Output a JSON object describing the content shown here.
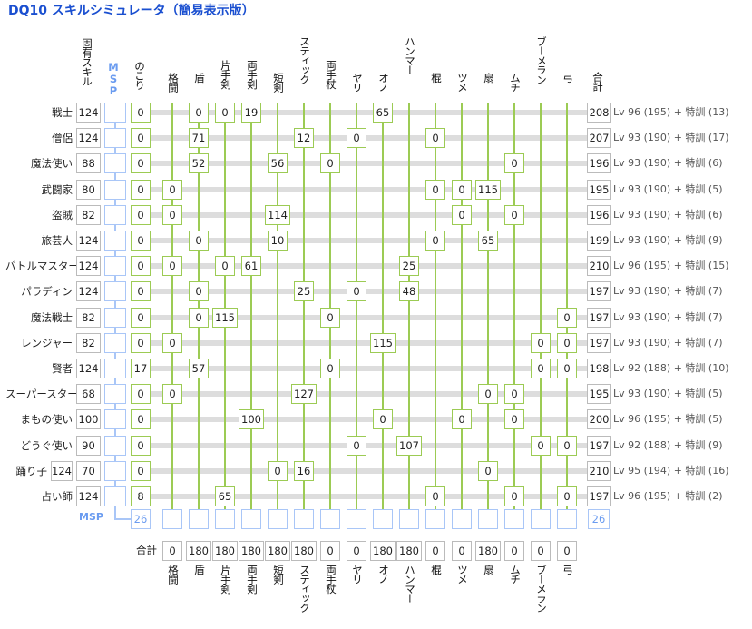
{
  "title": "DQ10 スキルシミュレータ（簡易表示版）",
  "header": {
    "unique_skill": "固有スキル",
    "msp": "MSP",
    "remaining": "のこり",
    "total": "合計"
  },
  "weapons": [
    "格闘",
    "盾",
    "片手剣",
    "両手剣",
    "短剣",
    "スティック",
    "両手杖",
    "ヤリ",
    "オノ",
    "ハンマー",
    "棍",
    "ツメ",
    "扇",
    "ムチ",
    "ブーメラン",
    "弓"
  ],
  "rows": [
    {
      "job": "戦士",
      "unique": "124",
      "remain": "0",
      "skills": [
        "",
        "0",
        "0",
        "19",
        "",
        "",
        "",
        "",
        "65",
        "",
        "",
        "",
        "",
        "",
        "",
        ""
      ],
      "total": "208",
      "lv": "Lv 96 (195) + 特訓 (13)"
    },
    {
      "job": "僧侶",
      "unique": "124",
      "remain": "0",
      "skills": [
        "",
        "71",
        "",
        "",
        "",
        "12",
        "",
        "0",
        "",
        "",
        "0",
        "",
        "",
        "",
        "",
        ""
      ],
      "total": "207",
      "lv": "Lv 93 (190) + 特訓 (17)"
    },
    {
      "job": "魔法使い",
      "unique": "88",
      "remain": "0",
      "skills": [
        "",
        "52",
        "",
        "",
        "56",
        "",
        "0",
        "",
        "",
        "",
        "",
        "",
        "",
        "0",
        "",
        ""
      ],
      "total": "196",
      "lv": "Lv 93 (190) + 特訓 (6)"
    },
    {
      "job": "武闘家",
      "unique": "80",
      "remain": "0",
      "skills": [
        "0",
        "",
        "",
        "",
        "",
        "",
        "",
        "",
        "",
        "",
        "0",
        "0",
        "115",
        "",
        "",
        ""
      ],
      "total": "195",
      "lv": "Lv 93 (190) + 特訓 (5)"
    },
    {
      "job": "盗賊",
      "unique": "82",
      "remain": "0",
      "skills": [
        "0",
        "",
        "",
        "",
        "114",
        "",
        "",
        "",
        "",
        "",
        "",
        "0",
        "",
        "0",
        "",
        ""
      ],
      "total": "196",
      "lv": "Lv 93 (190) + 特訓 (6)"
    },
    {
      "job": "旅芸人",
      "unique": "124",
      "remain": "0",
      "skills": [
        "",
        "0",
        "",
        "",
        "10",
        "",
        "",
        "",
        "",
        "",
        "0",
        "",
        "65",
        "",
        "",
        ""
      ],
      "total": "199",
      "lv": "Lv 93 (190) + 特訓 (9)"
    },
    {
      "job": "バトルマスター",
      "unique": "124",
      "remain": "0",
      "skills": [
        "0",
        "",
        "0",
        "61",
        "",
        "",
        "",
        "",
        "",
        "25",
        "",
        "",
        "",
        "",
        "",
        ""
      ],
      "total": "210",
      "lv": "Lv 96 (195) + 特訓 (15)"
    },
    {
      "job": "パラディン",
      "unique": "124",
      "remain": "0",
      "skills": [
        "",
        "0",
        "",
        "",
        "",
        "25",
        "",
        "0",
        "",
        "48",
        "",
        "",
        "",
        "",
        "",
        ""
      ],
      "total": "197",
      "lv": "Lv 93 (190) + 特訓 (7)"
    },
    {
      "job": "魔法戦士",
      "unique": "82",
      "remain": "0",
      "skills": [
        "",
        "0",
        "115",
        "",
        "",
        "",
        "0",
        "",
        "",
        "",
        "",
        "",
        "",
        "",
        "",
        "0"
      ],
      "total": "197",
      "lv": "Lv 93 (190) + 特訓 (7)"
    },
    {
      "job": "レンジャー",
      "unique": "82",
      "remain": "0",
      "skills": [
        "0",
        "",
        "",
        "",
        "",
        "",
        "",
        "",
        "115",
        "",
        "",
        "",
        "",
        "",
        "0",
        "0"
      ],
      "total": "197",
      "lv": "Lv 93 (190) + 特訓 (7)"
    },
    {
      "job": "賢者",
      "unique": "124",
      "remain": "17",
      "skills": [
        "",
        "57",
        "",
        "",
        "",
        "",
        "0",
        "",
        "",
        "",
        "",
        "",
        "",
        "",
        "0",
        "0"
      ],
      "total": "198",
      "lv": "Lv 92 (188) + 特訓 (10)"
    },
    {
      "job": "スーパースター",
      "unique": "68",
      "remain": "0",
      "skills": [
        "0",
        "",
        "",
        "",
        "",
        "127",
        "",
        "",
        "",
        "",
        "",
        "",
        "0",
        "0",
        "",
        ""
      ],
      "total": "195",
      "lv": "Lv 93 (190) + 特訓 (5)"
    },
    {
      "job": "まもの使い",
      "unique": "100",
      "remain": "0",
      "skills": [
        "",
        "",
        "",
        "100",
        "",
        "",
        "",
        "",
        "0",
        "",
        "",
        "0",
        "",
        "0",
        "",
        ""
      ],
      "total": "200",
      "lv": "Lv 96 (195) + 特訓 (5)"
    },
    {
      "job": "どうぐ使い",
      "unique": "90",
      "remain": "0",
      "skills": [
        "",
        "",
        "",
        "",
        "",
        "",
        "",
        "0",
        "",
        "107",
        "",
        "",
        "",
        "",
        "0",
        "0"
      ],
      "total": "197",
      "lv": "Lv 92 (188) + 特訓 (9)"
    },
    {
      "job": "踊り子",
      "unique": "70",
      "remain": "0",
      "extra": "124",
      "skills": [
        "",
        "",
        "",
        "",
        "0",
        "16",
        "",
        "",
        "",
        "",
        "",
        "",
        "0",
        "",
        "",
        ""
      ],
      "total": "210",
      "lv": "Lv 95 (194) + 特訓 (16)"
    },
    {
      "job": "占い師",
      "unique": "124",
      "remain": "8",
      "skills": [
        "",
        "",
        "65",
        "",
        "",
        "",
        "",
        "",
        "",
        "",
        "0",
        "",
        "",
        "0",
        "",
        "0"
      ],
      "total": "197",
      "lv": "Lv 96 (195) + 特訓 (2)"
    }
  ],
  "msp_row": {
    "label": "MSP",
    "left": "26",
    "right": "26"
  },
  "sum_row": {
    "label": "合計",
    "values": [
      "0",
      "180",
      "180",
      "180",
      "180",
      "180",
      "0",
      "0",
      "180",
      "180",
      "0",
      "0",
      "180",
      "0",
      "0",
      "0"
    ]
  },
  "colors": {
    "title": "#1a4fd0",
    "msp": "#6b9cf0",
    "green": "#9ccb54"
  }
}
